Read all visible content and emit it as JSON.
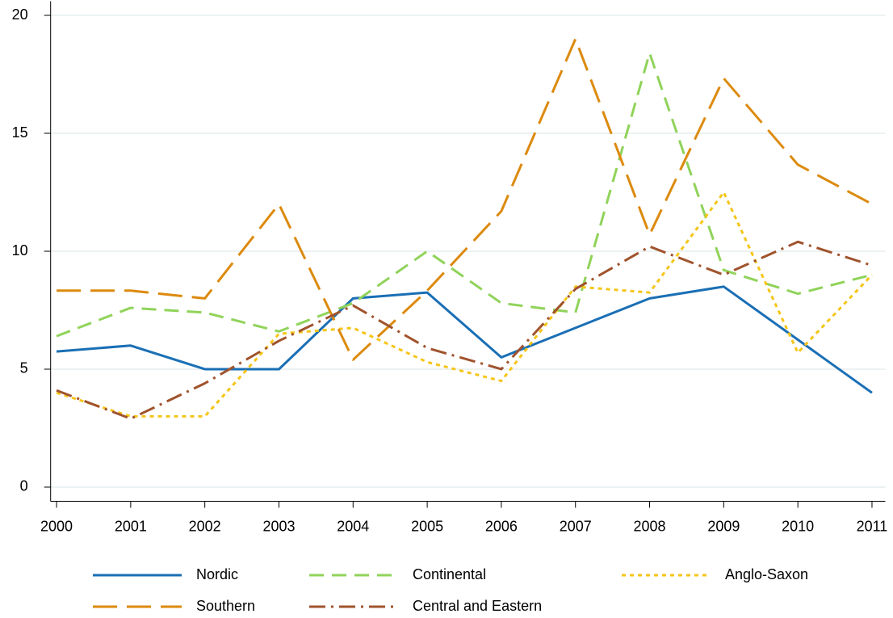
{
  "chart_data": {
    "type": "line",
    "x": [
      2000,
      2001,
      2002,
      2003,
      2004,
      2005,
      2006,
      2007,
      2008,
      2009,
      2010,
      2011
    ],
    "series": [
      {
        "name": "Nordic",
        "color": "#1a6fb5",
        "values": [
          5.75,
          6.0,
          5.0,
          5.0,
          8.0,
          8.25,
          5.5,
          6.75,
          8.0,
          8.5,
          6.25,
          4.0
        ]
      },
      {
        "name": "Continental",
        "color": "#90d35a",
        "values": [
          6.4,
          7.6,
          7.4,
          6.6,
          7.8,
          10.0,
          7.8,
          7.4,
          18.4,
          9.2,
          8.2,
          9.0
        ]
      },
      {
        "name": "Anglo-Saxon",
        "color": "#f5c518",
        "values": [
          4.0,
          3.0,
          3.0,
          6.5,
          6.75,
          5.3,
          4.5,
          8.5,
          8.25,
          12.5,
          5.7,
          9.0
        ]
      },
      {
        "name": "Southern",
        "color": "#dc8a0e",
        "values": [
          8.33,
          8.33,
          8.0,
          12.0,
          5.4,
          8.33,
          11.7,
          19.0,
          10.7,
          17.33,
          13.67,
          12.0
        ]
      },
      {
        "name": "Central and Eastern",
        "color": "#a0532d",
        "values": [
          4.1,
          2.9,
          4.4,
          6.2,
          7.7,
          5.9,
          5.0,
          8.4,
          10.2,
          9.0,
          10.4,
          9.4
        ]
      }
    ],
    "xlim": [
      1999.92,
      2011.18
    ],
    "xticks": [
      2000,
      2001,
      2002,
      2003,
      2004,
      2005,
      2006,
      2007,
      2008,
      2009,
      2010,
      2011
    ],
    "ylim": [
      -0.6,
      20.6
    ],
    "yticks": [
      0,
      5,
      10,
      15,
      20
    ],
    "grid": true
  }
}
